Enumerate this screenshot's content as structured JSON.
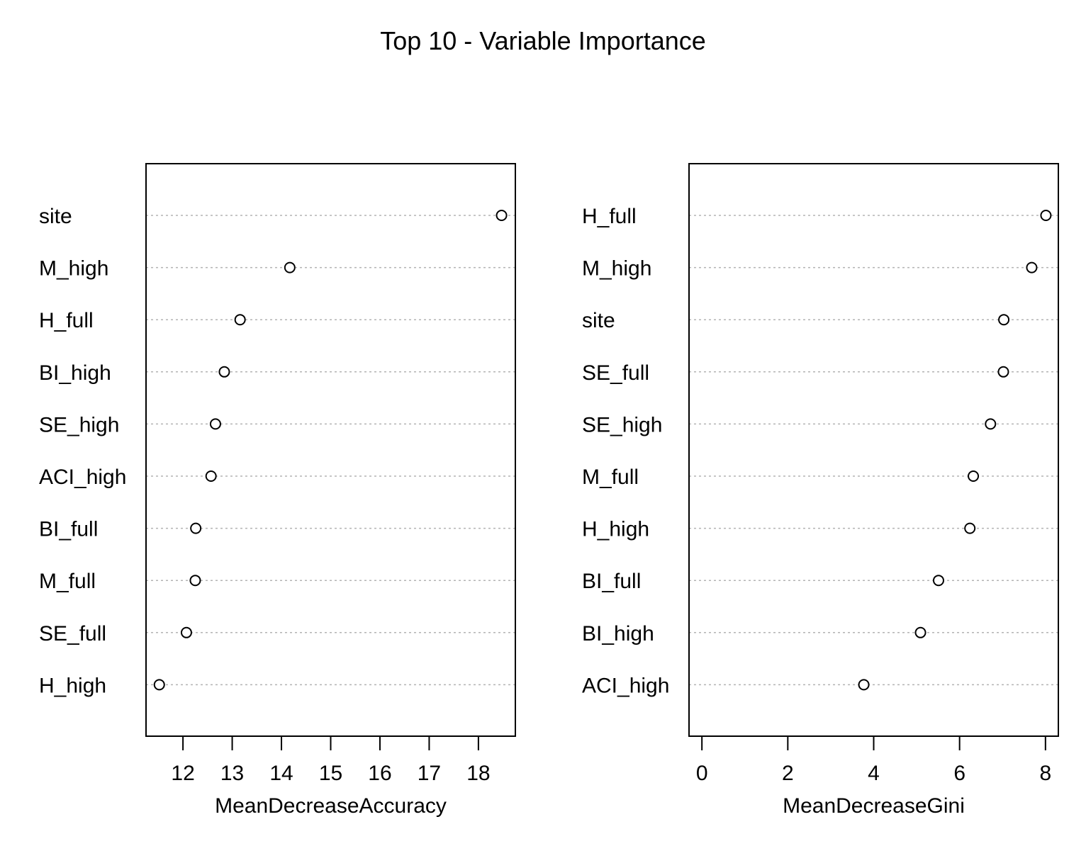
{
  "title": "Top 10 - Variable Importance",
  "chart_data": [
    {
      "type": "scatter",
      "subtype": "dotchart",
      "xlabel": "MeanDecreaseAccuracy",
      "ylabel": "",
      "xlim": [
        11.25,
        18.75
      ],
      "xticks": [
        12,
        13,
        14,
        15,
        16,
        17,
        18
      ],
      "grid": "dotted horizontal lines per variable",
      "categories": [
        "site",
        "M_high",
        "H_full",
        "BI_high",
        "SE_high",
        "ACI_high",
        "BI_full",
        "M_full",
        "SE_full",
        "H_high"
      ],
      "values": [
        18.47,
        14.17,
        13.16,
        12.84,
        12.66,
        12.57,
        12.26,
        12.25,
        12.07,
        11.52
      ]
    },
    {
      "type": "scatter",
      "subtype": "dotchart",
      "xlabel": "MeanDecreaseGini",
      "ylabel": "",
      "xlim": [
        -0.3,
        8.3
      ],
      "xticks": [
        0,
        2,
        4,
        6,
        8
      ],
      "grid": "dotted horizontal lines per variable",
      "categories": [
        "H_full",
        "M_high",
        "site",
        "SE_full",
        "SE_high",
        "M_full",
        "H_high",
        "BI_full",
        "BI_high",
        "ACI_high"
      ],
      "values": [
        8.01,
        7.68,
        7.03,
        7.02,
        6.72,
        6.32,
        6.24,
        5.51,
        5.09,
        3.77
      ]
    }
  ]
}
